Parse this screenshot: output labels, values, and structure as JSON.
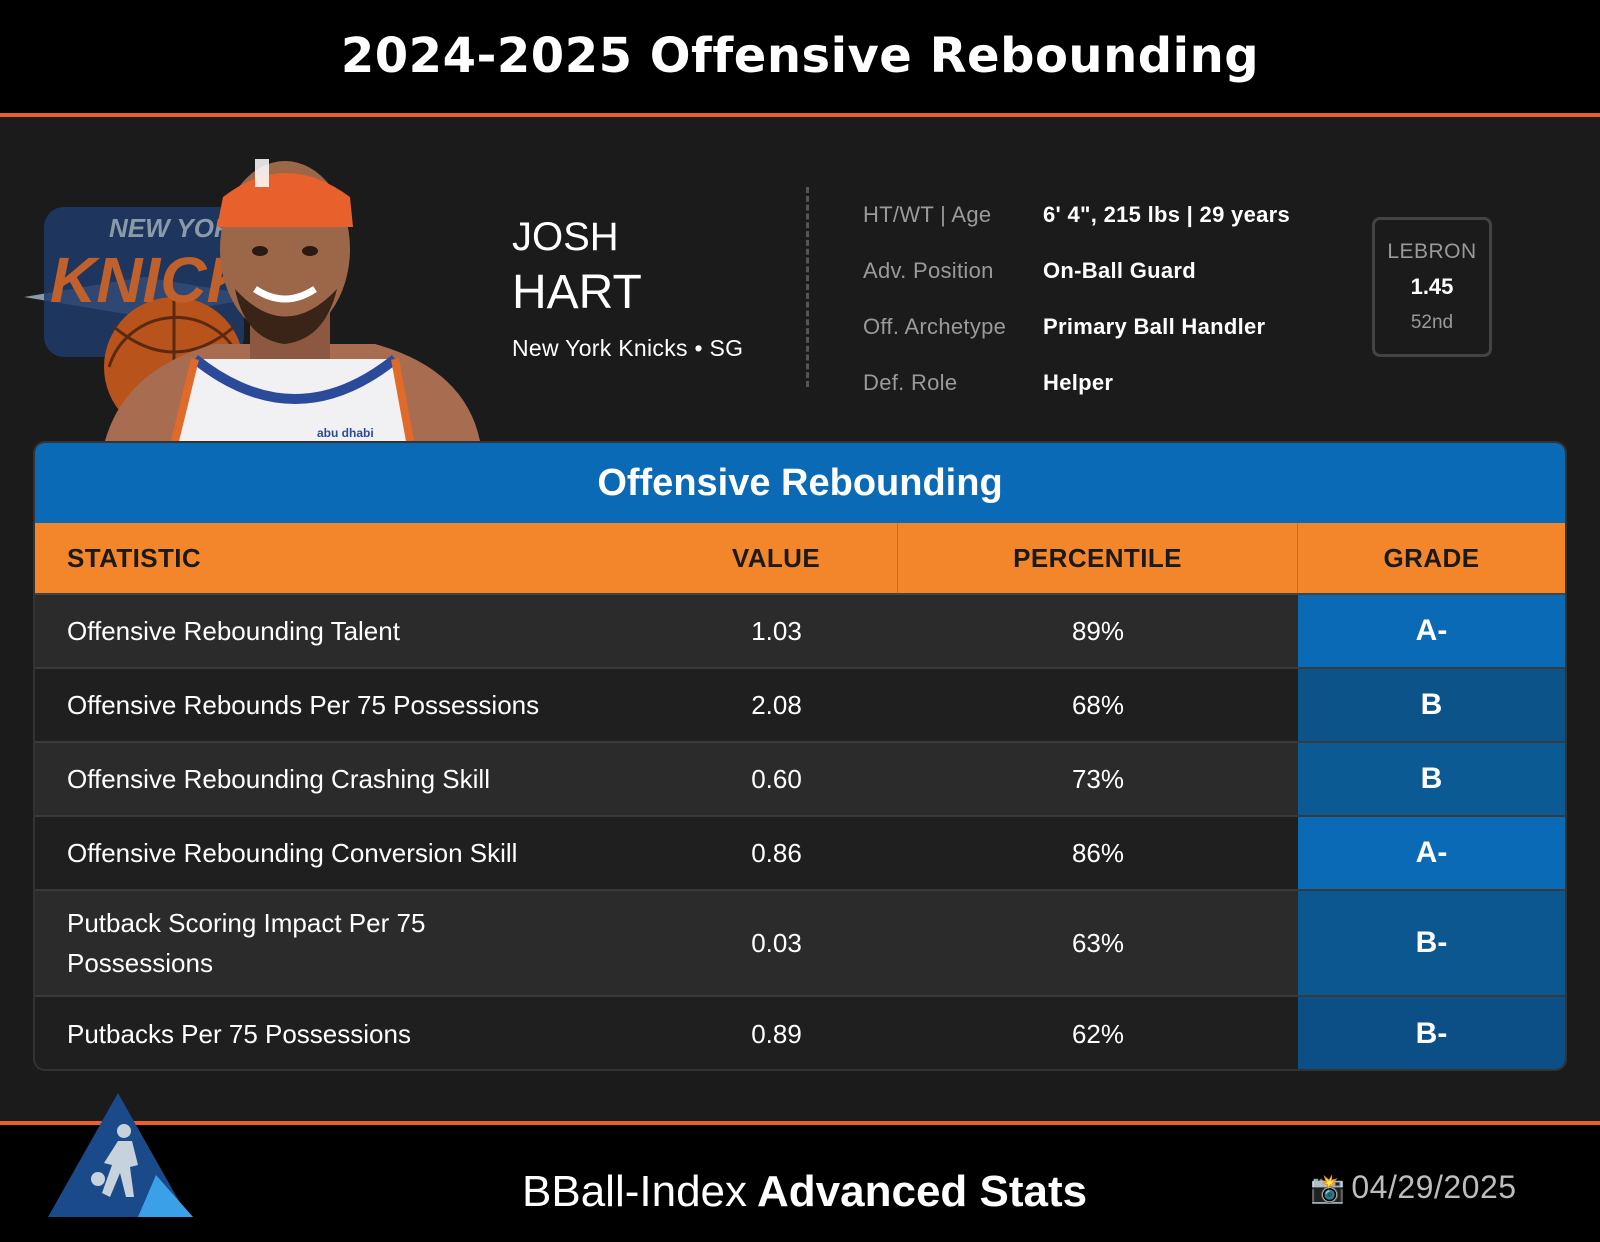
{
  "page": {
    "title": "2024-2025 Offensive Rebounding"
  },
  "player": {
    "first_name": "JOSH",
    "last_name": "HART",
    "team_position": "New York Knicks • SG"
  },
  "info": [
    {
      "label": "HT/WT | Age",
      "value": "6' 4\", 215 lbs | 29 years"
    },
    {
      "label": "Adv. Position",
      "value": "On-Ball Guard"
    },
    {
      "label": "Off. Archetype",
      "value": "Primary Ball Handler"
    },
    {
      "label": "Def. Role",
      "value": "Helper"
    }
  ],
  "lebron": {
    "label": "LEBRON",
    "value": "1.45",
    "rank": "52nd"
  },
  "table": {
    "title": "Offensive Rebounding",
    "headers": {
      "statistic": "STATISTIC",
      "value": "VALUE",
      "percentile": "PERCENTILE",
      "grade": "GRADE"
    },
    "rows": [
      {
        "statistic": "Offensive Rebounding Talent",
        "value": "1.03",
        "percentile": "89%",
        "grade": "A-",
        "grade_color": "#0a6ab5"
      },
      {
        "statistic": "Offensive Rebounds Per 75 Possessions",
        "value": "2.08",
        "percentile": "68%",
        "grade": "B",
        "grade_color": "#0c5389"
      },
      {
        "statistic": "Offensive Rebounding Crashing Skill",
        "value": "0.60",
        "percentile": "73%",
        "grade": "B",
        "grade_color": "#0c5a93"
      },
      {
        "statistic": "Offensive Rebounding Conversion Skill",
        "value": "0.86",
        "percentile": "86%",
        "grade": "A-",
        "grade_color": "#0a6ab5"
      },
      {
        "statistic": "Putback Scoring Impact Per 75 Possessions",
        "value": "0.03",
        "percentile": "63%",
        "grade": "B-",
        "grade_color": "#0d5790"
      },
      {
        "statistic": "Putbacks Per 75 Possessions",
        "value": "0.89",
        "percentile": "62%",
        "grade": "B-",
        "grade_color": "#0b4f86"
      }
    ]
  },
  "footer": {
    "brand_light": "BBall-Index",
    "brand_bold": "Advanced Stats",
    "date": "04/29/2025",
    "camera_icon": "📸"
  },
  "logo_text": {
    "team_top": "NEW YORK",
    "team_main": "KNICKS",
    "jersey_sponsor": "abu dhabi"
  },
  "colors": {
    "accent_orange": "#e8612c",
    "header_orange": "#f3862a",
    "blue": "#0a6ab5"
  }
}
